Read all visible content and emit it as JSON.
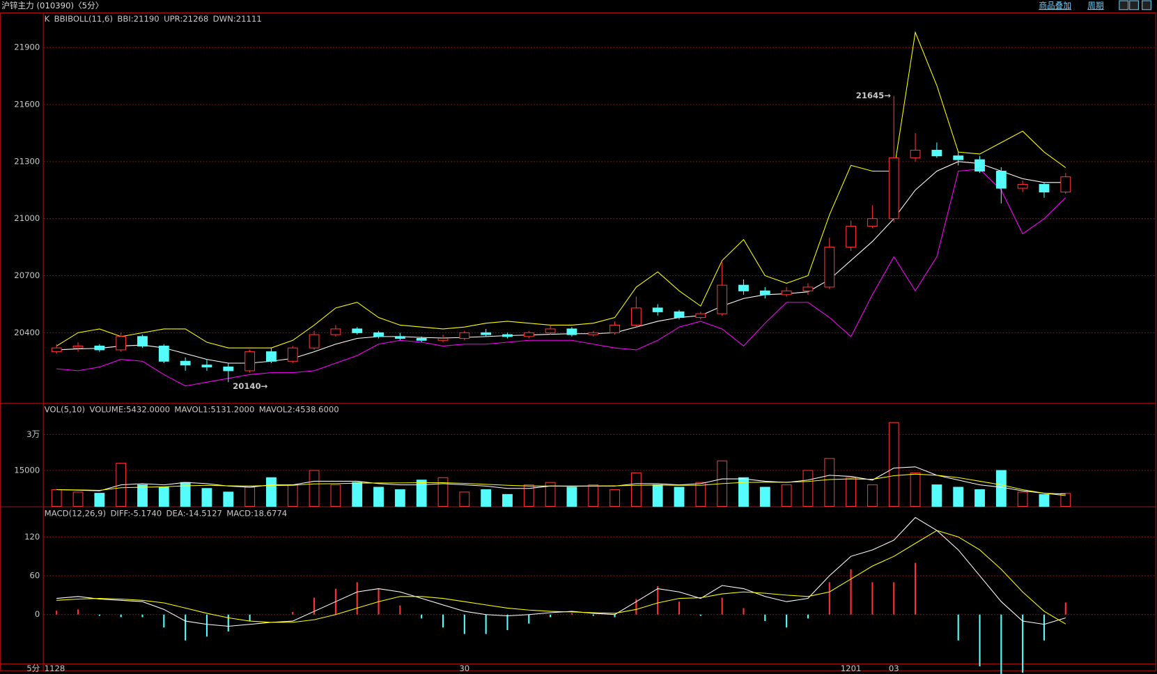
{
  "header": {
    "title": "沪锌主力 (010390)〈5分〉",
    "links": [
      "商品叠加",
      "周期"
    ],
    "period": "5分"
  },
  "chart_data": [
    {
      "type": "candlestick",
      "label": "K",
      "indicator": "BBIBOLL(11,6)",
      "open": [
        20300,
        20320,
        20330,
        20310,
        20380,
        20330,
        20250,
        20230,
        20220,
        20200,
        20300,
        20250,
        20320,
        20390,
        20420,
        20400,
        20380,
        20370,
        20360,
        20370,
        20400,
        20390,
        20380,
        20400,
        20420,
        20390,
        20400,
        20440,
        20530,
        20510,
        20480,
        20500,
        20650,
        20620,
        20600,
        20620,
        20640,
        20850,
        20960,
        21000,
        21320,
        21360,
        21330,
        21310,
        21250,
        21160,
        21180,
        21140
      ],
      "high": [
        20340,
        20350,
        20340,
        20400,
        20390,
        20340,
        20270,
        20260,
        20240,
        20310,
        20320,
        20330,
        20410,
        20440,
        20430,
        20410,
        20400,
        20380,
        20390,
        20410,
        20420,
        20400,
        20410,
        20440,
        20430,
        20410,
        20460,
        20590,
        20550,
        20520,
        20510,
        20770,
        20680,
        20640,
        20640,
        20660,
        20900,
        20990,
        21070,
        21645,
        21450,
        21400,
        21350,
        21330,
        21270,
        21200,
        21190,
        21240
      ],
      "low": [
        20290,
        20300,
        20300,
        20300,
        20320,
        20240,
        20200,
        20200,
        20140,
        20190,
        20240,
        20240,
        20310,
        20380,
        20390,
        20370,
        20360,
        20350,
        20350,
        20360,
        20380,
        20370,
        20370,
        20390,
        20380,
        20380,
        20390,
        20430,
        20490,
        20470,
        20470,
        20490,
        20600,
        20580,
        20590,
        20600,
        20630,
        20830,
        20950,
        20980,
        21300,
        21320,
        21280,
        21240,
        21080,
        21140,
        21110,
        21130
      ],
      "close": [
        20320,
        20330,
        20310,
        20380,
        20330,
        20250,
        20230,
        20220,
        20200,
        20300,
        20250,
        20320,
        20390,
        20420,
        20400,
        20380,
        20370,
        20360,
        20370,
        20400,
        20390,
        20380,
        20400,
        20420,
        20390,
        20400,
        20440,
        20530,
        20510,
        20480,
        20500,
        20650,
        20620,
        20600,
        20620,
        20640,
        20850,
        20960,
        21000,
        21320,
        21360,
        21330,
        21310,
        21250,
        21160,
        21180,
        21140,
        21220
      ],
      "up_color": "#ff3232",
      "down_color": "#54fcfc",
      "series": [
        {
          "name": "BBI:21190",
          "color": "#ffffff",
          "values": [
            20310,
            20315,
            20318,
            20330,
            20335,
            20320,
            20290,
            20260,
            20240,
            20240,
            20250,
            20265,
            20300,
            20340,
            20370,
            20380,
            20380,
            20375,
            20372,
            20375,
            20380,
            20385,
            20388,
            20392,
            20395,
            20395,
            20400,
            20430,
            20460,
            20480,
            20490,
            20540,
            20580,
            20600,
            20605,
            20615,
            20680,
            20780,
            20880,
            21000,
            21150,
            21250,
            21300,
            21290,
            21250,
            21210,
            21190,
            21190
          ]
        },
        {
          "name": "UPR:21268",
          "color": "#ffff00",
          "values": [
            20330,
            20400,
            20420,
            20380,
            20400,
            20420,
            20420,
            20350,
            20320,
            20320,
            20320,
            20360,
            20440,
            20530,
            20560,
            20480,
            20440,
            20430,
            20420,
            20430,
            20450,
            20460,
            20450,
            20440,
            20440,
            20450,
            20480,
            20640,
            20720,
            20620,
            20540,
            20780,
            20890,
            20700,
            20660,
            20700,
            21020,
            21280,
            21250,
            21250,
            21980,
            21700,
            21350,
            21340,
            21400,
            21460,
            21350,
            21268
          ]
        },
        {
          "name": "DWN:21111",
          "color": "#ff00ff",
          "values": [
            20210,
            20200,
            20220,
            20260,
            20250,
            20180,
            20120,
            20140,
            20160,
            20180,
            20190,
            20190,
            20200,
            20240,
            20280,
            20340,
            20360,
            20350,
            20330,
            20340,
            20340,
            20350,
            20360,
            20360,
            20360,
            20340,
            20320,
            20310,
            20360,
            20430,
            20460,
            20420,
            20330,
            20450,
            20560,
            20560,
            20480,
            20380,
            20600,
            20800,
            20620,
            20800,
            21250,
            21260,
            21150,
            20920,
            21000,
            21111
          ]
        }
      ],
      "ylim": [
        20030,
        22080
      ],
      "yticks": [
        20400,
        20700,
        21000,
        21300,
        21600,
        21900
      ],
      "grid": true,
      "annotations": [
        "21645→",
        "20140→"
      ]
    },
    {
      "type": "bar",
      "indicator": "VOL(5,10)",
      "series": [
        {
          "name": "VOLUME:5432.0000",
          "color": "#c8c8c8",
          "values": [
            7000,
            6000,
            5500,
            18000,
            9000,
            8000,
            10000,
            7500,
            6000,
            8000,
            12000,
            9000,
            15000,
            9000,
            10000,
            8000,
            7000,
            11000,
            12000,
            6000,
            7000,
            5000,
            9000,
            10000,
            8000,
            9000,
            7000,
            14000,
            9000,
            8000,
            10000,
            19000,
            12000,
            8000,
            9000,
            15000,
            20000,
            12000,
            9000,
            35000,
            14000,
            9000,
            8000,
            7000,
            15000,
            6000,
            5000,
            5432
          ]
        },
        {
          "name": "MAVOL1:5131.2000",
          "color": "#ffffff",
          "values": [
            7000,
            6800,
            6500,
            9000,
            9500,
            9000,
            10000,
            9500,
            8500,
            8000,
            9000,
            9000,
            10500,
            10500,
            10500,
            9500,
            9000,
            9000,
            9500,
            9000,
            8500,
            7500,
            7500,
            8500,
            8500,
            8500,
            8500,
            9500,
            9500,
            9000,
            9500,
            11500,
            11500,
            10500,
            10000,
            11000,
            13000,
            12500,
            11000,
            16000,
            16500,
            13000,
            11000,
            9000,
            8000,
            6500,
            5500,
            5131.2
          ]
        },
        {
          "name": "MAVOL2:4538.6000",
          "color": "#ffff00",
          "values": [
            7000,
            6900,
            6700,
            7800,
            8000,
            8200,
            8600,
            8800,
            8600,
            8500,
            8700,
            8800,
            9400,
            9500,
            9700,
            9800,
            9800,
            9900,
            9900,
            9600,
            9200,
            8800,
            8500,
            8500,
            8400,
            8500,
            8600,
            8800,
            8900,
            8800,
            8800,
            9500,
            10000,
            10100,
            10100,
            10400,
            11200,
            11500,
            11300,
            12800,
            13500,
            13000,
            12000,
            10500,
            9000,
            7000,
            5500,
            4538.6
          ]
        }
      ],
      "ylim": [
        0,
        42800
      ],
      "yticks": [
        15000,
        {
          "value": 30000,
          "label": "3万"
        }
      ],
      "grid": true
    },
    {
      "type": "macd",
      "indicator": "MACD(12,26,9)",
      "categories": [
        "1128",
        null,
        null,
        null,
        null,
        null,
        null,
        null,
        null,
        null,
        null,
        null,
        null,
        null,
        null,
        null,
        null,
        null,
        null,
        "30",
        null,
        null,
        null,
        null,
        null,
        null,
        null,
        null,
        null,
        null,
        null,
        null,
        null,
        null,
        null,
        null,
        null,
        "1201",
        null,
        "03",
        null,
        null,
        null,
        null,
        null,
        null,
        null,
        null
      ],
      "series": [
        {
          "name": "DIFF:-5.1740",
          "color": "#ffffff",
          "values": [
            25,
            28,
            24,
            22,
            20,
            8,
            -10,
            -15,
            -18,
            -15,
            -12,
            -10,
            5,
            20,
            35,
            40,
            35,
            25,
            15,
            5,
            0,
            -2,
            0,
            3,
            5,
            2,
            0,
            20,
            40,
            35,
            25,
            45,
            40,
            28,
            20,
            25,
            60,
            90,
            100,
            115,
            150,
            130,
            100,
            60,
            20,
            -10,
            -15,
            -5.174
          ]
        },
        {
          "name": "DEA:-14.5127",
          "color": "#ffff00",
          "values": [
            22,
            24,
            25,
            24,
            22,
            18,
            10,
            2,
            -5,
            -10,
            -12,
            -12,
            -8,
            0,
            10,
            20,
            28,
            28,
            25,
            20,
            15,
            10,
            7,
            5,
            4,
            3,
            2,
            8,
            18,
            25,
            26,
            32,
            35,
            33,
            30,
            28,
            35,
            55,
            75,
            90,
            110,
            130,
            120,
            100,
            70,
            35,
            5,
            -14.5127
          ]
        },
        {
          "name": "MACD:18.6774",
          "color": "#c8c8c8",
          "values": [
            6,
            8,
            -2,
            -4,
            -4,
            -20,
            -40,
            -34,
            -26,
            -10,
            0,
            4,
            26,
            40,
            50,
            40,
            14,
            -6,
            -20,
            -30,
            -30,
            -24,
            -14,
            -4,
            2,
            -2,
            -4,
            24,
            44,
            20,
            -2,
            26,
            10,
            -10,
            -20,
            -6,
            50,
            70,
            50,
            50,
            80,
            0,
            -40,
            -80,
            -100,
            -90,
            -40,
            18.6774
          ]
        }
      ],
      "ylim": [
        -77,
        166
      ],
      "yticks": [
        0,
        60,
        120
      ],
      "grid": true
    }
  ]
}
